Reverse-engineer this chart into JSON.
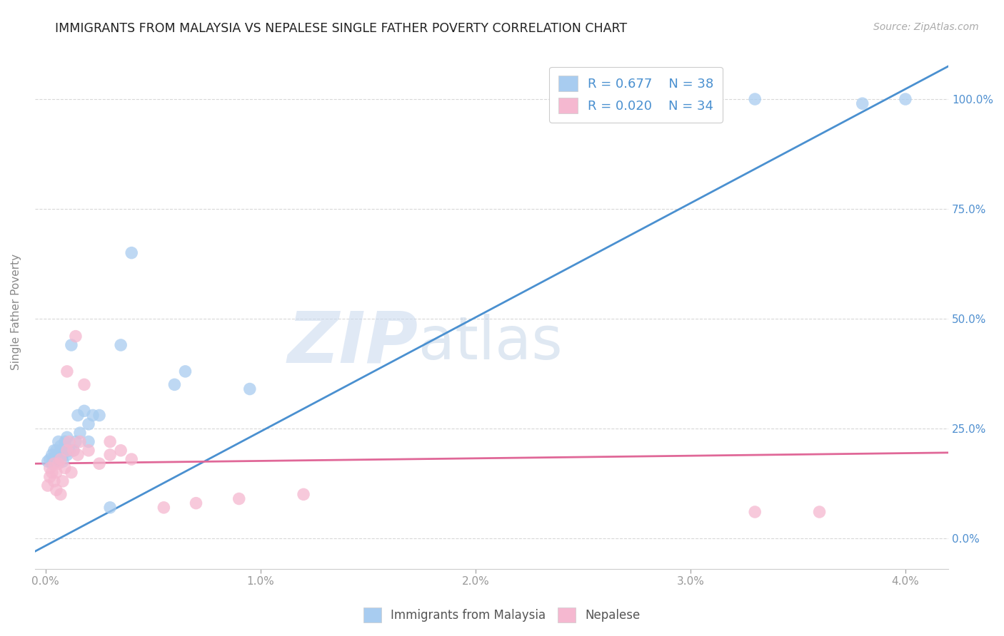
{
  "title": "IMMIGRANTS FROM MALAYSIA VS NEPALESE SINGLE FATHER POVERTY CORRELATION CHART",
  "source": "Source: ZipAtlas.com",
  "xlabel_ticks": [
    "0.0%",
    "1.0%",
    "2.0%",
    "3.0%",
    "4.0%"
  ],
  "xlabel_values": [
    0.0,
    0.01,
    0.02,
    0.03,
    0.04
  ],
  "ylabel_ticks": [
    "0.0%",
    "25.0%",
    "50.0%",
    "75.0%",
    "100.0%"
  ],
  "ylabel_values": [
    0.0,
    0.25,
    0.5,
    0.75,
    1.0
  ],
  "xlim": [
    -0.0005,
    0.042
  ],
  "ylim": [
    -0.07,
    1.1
  ],
  "ylabel": "Single Father Poverty",
  "legend_r1": "R = 0.677",
  "legend_n1": "N = 38",
  "legend_r2": "R = 0.020",
  "legend_n2": "N = 34",
  "blue_color": "#a8ccf0",
  "pink_color": "#f5b8d0",
  "line_blue": "#4a90d0",
  "line_pink": "#e06898",
  "watermark_zip": "ZIP",
  "watermark_atlas": "atlas",
  "blue_scatter_x": [
    0.0001,
    0.0002,
    0.0003,
    0.0003,
    0.0004,
    0.0004,
    0.0005,
    0.0005,
    0.0006,
    0.0006,
    0.0007,
    0.0007,
    0.0008,
    0.0008,
    0.0009,
    0.0009,
    0.001,
    0.001,
    0.0011,
    0.0012,
    0.0013,
    0.0014,
    0.0015,
    0.0016,
    0.0018,
    0.002,
    0.002,
    0.0022,
    0.0025,
    0.003,
    0.0035,
    0.004,
    0.006,
    0.0065,
    0.0095,
    0.033,
    0.038,
    0.04
  ],
  "blue_scatter_y": [
    0.175,
    0.18,
    0.17,
    0.19,
    0.2,
    0.18,
    0.2,
    0.175,
    0.22,
    0.19,
    0.21,
    0.2,
    0.19,
    0.175,
    0.22,
    0.21,
    0.23,
    0.19,
    0.2,
    0.44,
    0.2,
    0.22,
    0.28,
    0.24,
    0.29,
    0.26,
    0.22,
    0.28,
    0.28,
    0.07,
    0.44,
    0.65,
    0.35,
    0.38,
    0.34,
    1.0,
    0.99,
    1.0
  ],
  "pink_scatter_x": [
    0.0001,
    0.0002,
    0.0002,
    0.0003,
    0.0004,
    0.0004,
    0.0005,
    0.0005,
    0.0006,
    0.0007,
    0.0007,
    0.0008,
    0.0009,
    0.001,
    0.001,
    0.0011,
    0.0012,
    0.0013,
    0.0014,
    0.0015,
    0.0016,
    0.0018,
    0.002,
    0.0025,
    0.003,
    0.003,
    0.0035,
    0.004,
    0.0055,
    0.007,
    0.009,
    0.012,
    0.033,
    0.036
  ],
  "pink_scatter_y": [
    0.12,
    0.16,
    0.14,
    0.15,
    0.13,
    0.17,
    0.11,
    0.15,
    0.17,
    0.18,
    0.1,
    0.13,
    0.16,
    0.2,
    0.38,
    0.22,
    0.15,
    0.2,
    0.46,
    0.19,
    0.22,
    0.35,
    0.2,
    0.17,
    0.22,
    0.19,
    0.2,
    0.18,
    0.07,
    0.08,
    0.09,
    0.1,
    0.06,
    0.06
  ],
  "blue_line_x": [
    -0.0005,
    0.042
  ],
  "blue_line_y": [
    -0.03,
    1.075
  ],
  "pink_line_x": [
    -0.0005,
    0.042
  ],
  "pink_line_y": [
    0.17,
    0.195
  ],
  "background_color": "#ffffff",
  "grid_color": "#d8d8d8",
  "title_color": "#222222",
  "tick_color_right": "#5090d0",
  "tick_color_bottom": "#999999"
}
